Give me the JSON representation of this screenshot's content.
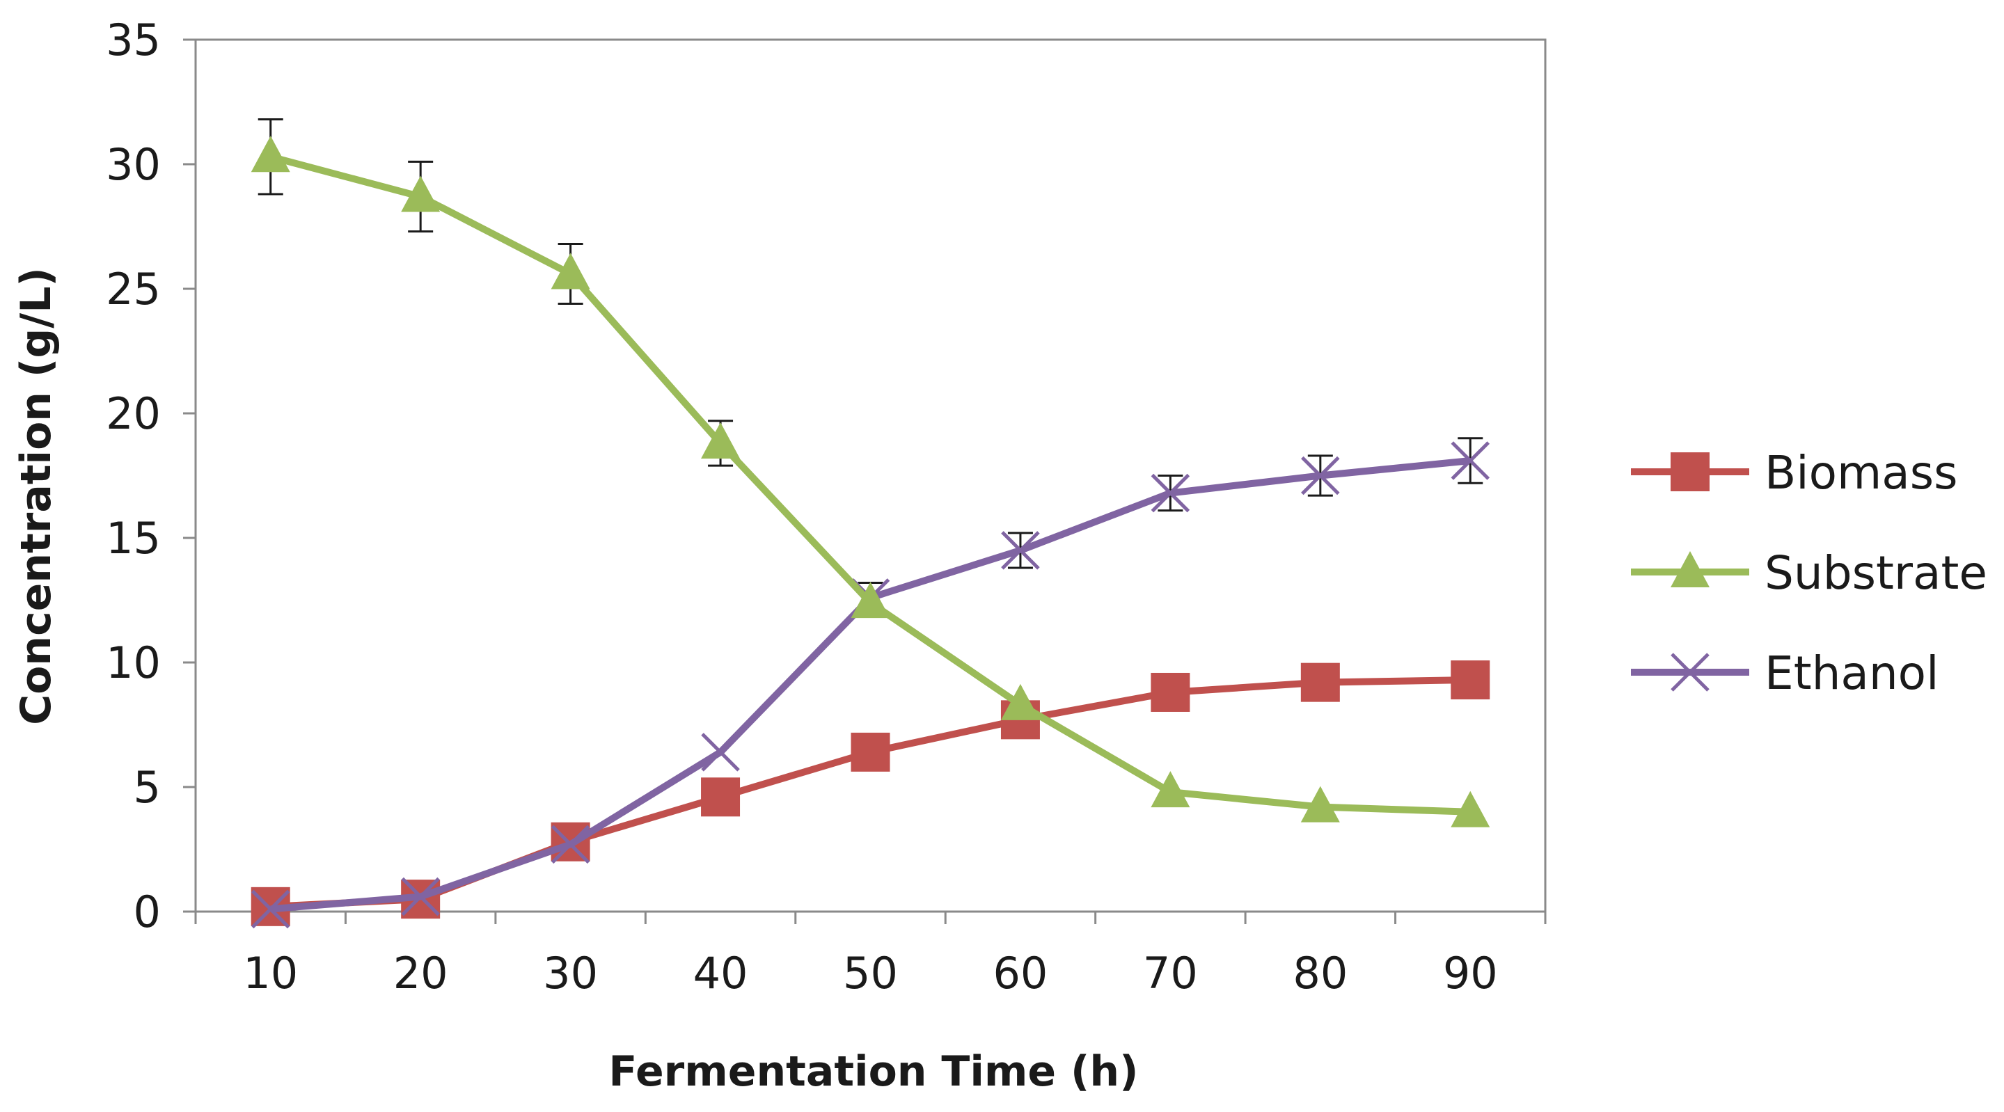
{
  "chart_data": {
    "type": "line",
    "title": "",
    "xlabel": "Fermentation Time (h)",
    "ylabel": "Concentration (g/L)",
    "categories": [
      "10",
      "20",
      "30",
      "40",
      "50",
      "60",
      "70",
      "80",
      "90"
    ],
    "ylim": [
      0,
      35
    ],
    "yticks": [
      "0",
      "5",
      "10",
      "15",
      "20",
      "25",
      "30",
      "35"
    ],
    "grid": false,
    "legend_position": "right",
    "series": [
      {
        "name": "Biomass",
        "color": "#c0504d",
        "marker": "square",
        "values": [
          0.2,
          0.5,
          2.8,
          4.6,
          6.4,
          7.7,
          8.8,
          9.2,
          9.3
        ],
        "errors": []
      },
      {
        "name": "Substrate",
        "color": "#9bbb59",
        "marker": "triangle",
        "values": [
          30.3,
          28.7,
          25.6,
          18.8,
          12.4,
          8.3,
          4.8,
          4.2,
          4.0
        ],
        "errors": [
          1.5,
          1.4,
          1.2,
          0.9,
          0,
          0,
          0,
          0,
          0
        ]
      },
      {
        "name": "Ethanol",
        "color": "#8064a2",
        "marker": "x",
        "values": [
          0.1,
          0.6,
          2.7,
          6.4,
          12.6,
          14.5,
          16.8,
          17.5,
          18.1
        ],
        "errors": [
          0,
          0,
          0,
          0,
          0.6,
          0.7,
          0.7,
          0.8,
          0.9
        ]
      }
    ]
  }
}
